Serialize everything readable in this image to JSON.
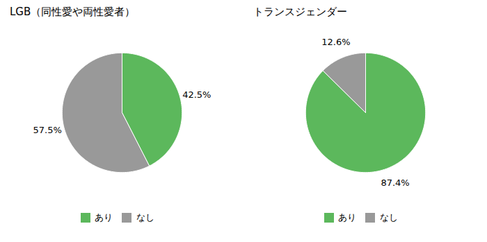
{
  "chart_data": [
    {
      "type": "pie",
      "title": "LGB（同性愛や両性愛者）",
      "categories": [
        "あり",
        "なし"
      ],
      "values": [
        42.5,
        57.5
      ],
      "value_labels": [
        "42.5%",
        "57.5%"
      ],
      "data_labels": true,
      "colors": [
        "#5cb85c",
        "#999999"
      ],
      "legend": "bottom"
    },
    {
      "type": "pie",
      "title": "トランスジェンダー",
      "categories": [
        "あり",
        "なし"
      ],
      "values": [
        87.4,
        12.6
      ],
      "value_labels": [
        "87.4%",
        "12.6%"
      ],
      "data_labels": true,
      "colors": [
        "#5cb85c",
        "#999999"
      ],
      "legend": "bottom"
    }
  ]
}
